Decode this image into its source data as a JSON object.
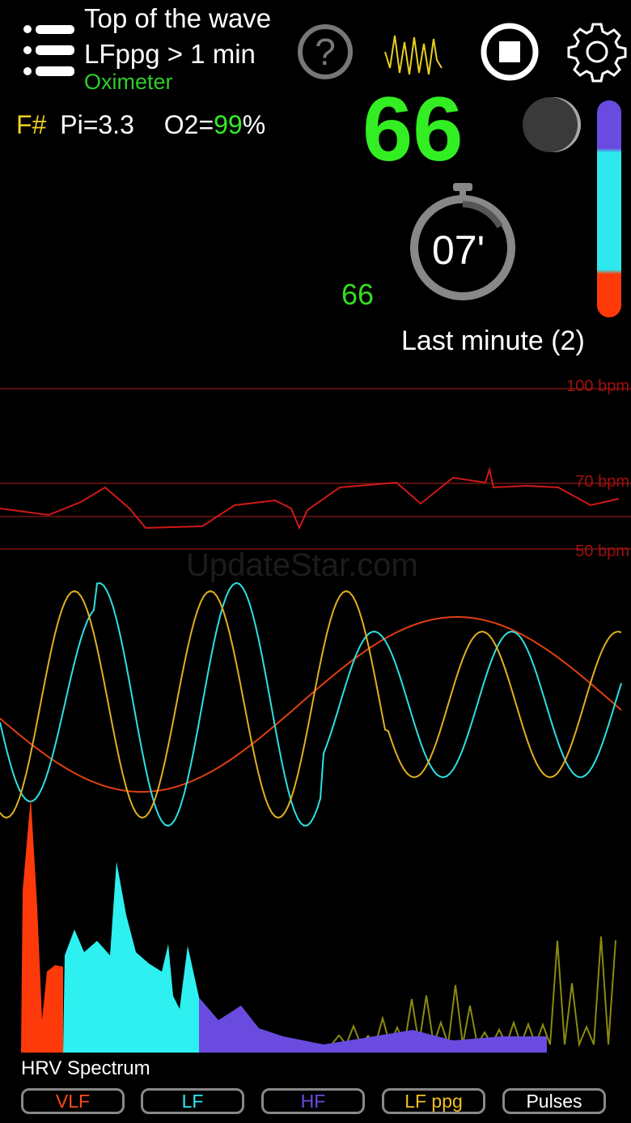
{
  "header": {
    "title_line1": "Top of the wave",
    "title_line2": "LFppg > 1 min",
    "source": "Oximeter"
  },
  "icons": {
    "menu": "list-icon",
    "help": "question-circle-icon",
    "ppg": "waveform-icon",
    "stop": "stop-icon",
    "settings": "gear-icon",
    "moon": "moon-icon",
    "timer": "stopwatch-icon"
  },
  "stats": {
    "f_label": "F#",
    "pi": "Pi=3.3",
    "o2_label": "O2=",
    "o2_value": "99",
    "o2_unit": "%"
  },
  "heart_rate": "66",
  "heart_rate_small": "66",
  "timer": "07'",
  "last_minute": "Last minute (2)",
  "hr_chart": {
    "labels": [
      "100 bpm",
      "70 bpm",
      "50 bpm"
    ]
  },
  "watermark": "UpdateStar.com",
  "spectrum_label": "HRV Spectrum",
  "buttons": [
    {
      "label": "VLF",
      "color": "#ff4a1a"
    },
    {
      "label": "LF",
      "color": "#2ee8ee"
    },
    {
      "label": "HF",
      "color": "#6a4be0"
    },
    {
      "label": "LF ppg",
      "color": "#f0c020"
    },
    {
      "label": "Pulses",
      "color": "#ffffff"
    }
  ],
  "colors": {
    "vlf": "#ff3a0a",
    "lf": "#2ee8ee",
    "hf": "#6a4be0",
    "lfppg": "#e0b020",
    "hr": "#d01818",
    "ppg_raw": "#8a8a10"
  }
}
